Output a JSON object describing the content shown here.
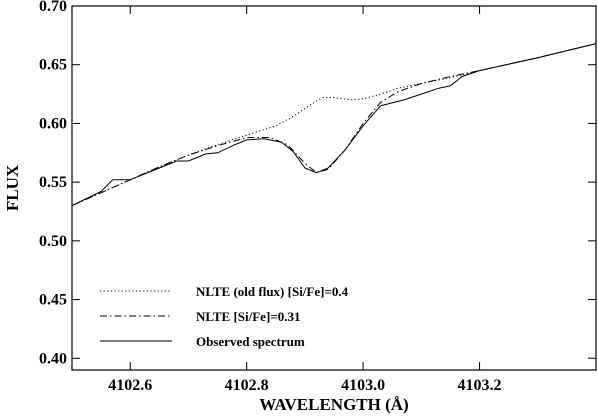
{
  "chart_data": {
    "type": "line",
    "xlabel": "WAVELENGTH (Å)",
    "ylabel": "FLUX",
    "xlim": [
      4102.5,
      4103.4
    ],
    "ylim": [
      0.39,
      0.7
    ],
    "xticks": [
      4102.6,
      4102.8,
      4103.0,
      4103.2
    ],
    "xtick_labels": [
      "4102.6",
      "4102.8",
      "4103.0",
      "4103.2"
    ],
    "yticks": [
      0.4,
      0.45,
      0.5,
      0.55,
      0.6,
      0.65,
      0.7
    ],
    "ytick_labels": [
      "0.40",
      "0.45",
      "0.50",
      "0.55",
      "0.60",
      "0.65",
      "0.70"
    ],
    "legend_position": "bottom-left",
    "series": [
      {
        "name": "NLTE (old flux) [Si/Fe]=0.4",
        "style": "dotted",
        "x": [
          4102.5,
          4102.55,
          4102.6,
          4102.65,
          4102.7,
          4102.75,
          4102.8,
          4102.85,
          4102.88,
          4102.91,
          4102.93,
          4102.95,
          4102.98,
          4103.0,
          4103.03,
          4103.06,
          4103.1,
          4103.15,
          4103.2,
          4103.3,
          4103.4
        ],
        "y": [
          0.53,
          0.541,
          0.552,
          0.563,
          0.573,
          0.582,
          0.59,
          0.598,
          0.606,
          0.616,
          0.622,
          0.622,
          0.62,
          0.621,
          0.625,
          0.63,
          0.634,
          0.639,
          0.645,
          0.656,
          0.668
        ]
      },
      {
        "name": "NLTE [Si/Fe]=0.31",
        "style": "dash-dot",
        "x": [
          4102.5,
          4102.55,
          4102.6,
          4102.65,
          4102.7,
          4102.75,
          4102.8,
          4102.84,
          4102.87,
          4102.9,
          4102.92,
          4102.94,
          4102.97,
          4103.0,
          4103.03,
          4103.06,
          4103.1,
          4103.15,
          4103.2,
          4103.3,
          4103.4
        ],
        "y": [
          0.53,
          0.541,
          0.552,
          0.563,
          0.573,
          0.581,
          0.588,
          0.588,
          0.582,
          0.566,
          0.558,
          0.561,
          0.578,
          0.6,
          0.618,
          0.627,
          0.634,
          0.64,
          0.645,
          0.656,
          0.668
        ]
      },
      {
        "name": "Observed spectrum",
        "style": "solid",
        "x": [
          4102.5,
          4102.55,
          4102.57,
          4102.6,
          4102.65,
          4102.68,
          4102.7,
          4102.73,
          4102.75,
          4102.78,
          4102.8,
          4102.83,
          4102.86,
          4102.88,
          4102.9,
          4102.92,
          4102.94,
          4102.97,
          4103.0,
          4103.03,
          4103.07,
          4103.1,
          4103.13,
          4103.15,
          4103.17,
          4103.2,
          4103.3,
          4103.4
        ],
        "y": [
          0.53,
          0.542,
          0.552,
          0.552,
          0.562,
          0.568,
          0.568,
          0.574,
          0.575,
          0.582,
          0.586,
          0.587,
          0.584,
          0.576,
          0.562,
          0.558,
          0.562,
          0.578,
          0.598,
          0.615,
          0.62,
          0.625,
          0.63,
          0.632,
          0.64,
          0.645,
          0.656,
          0.668
        ]
      }
    ]
  }
}
